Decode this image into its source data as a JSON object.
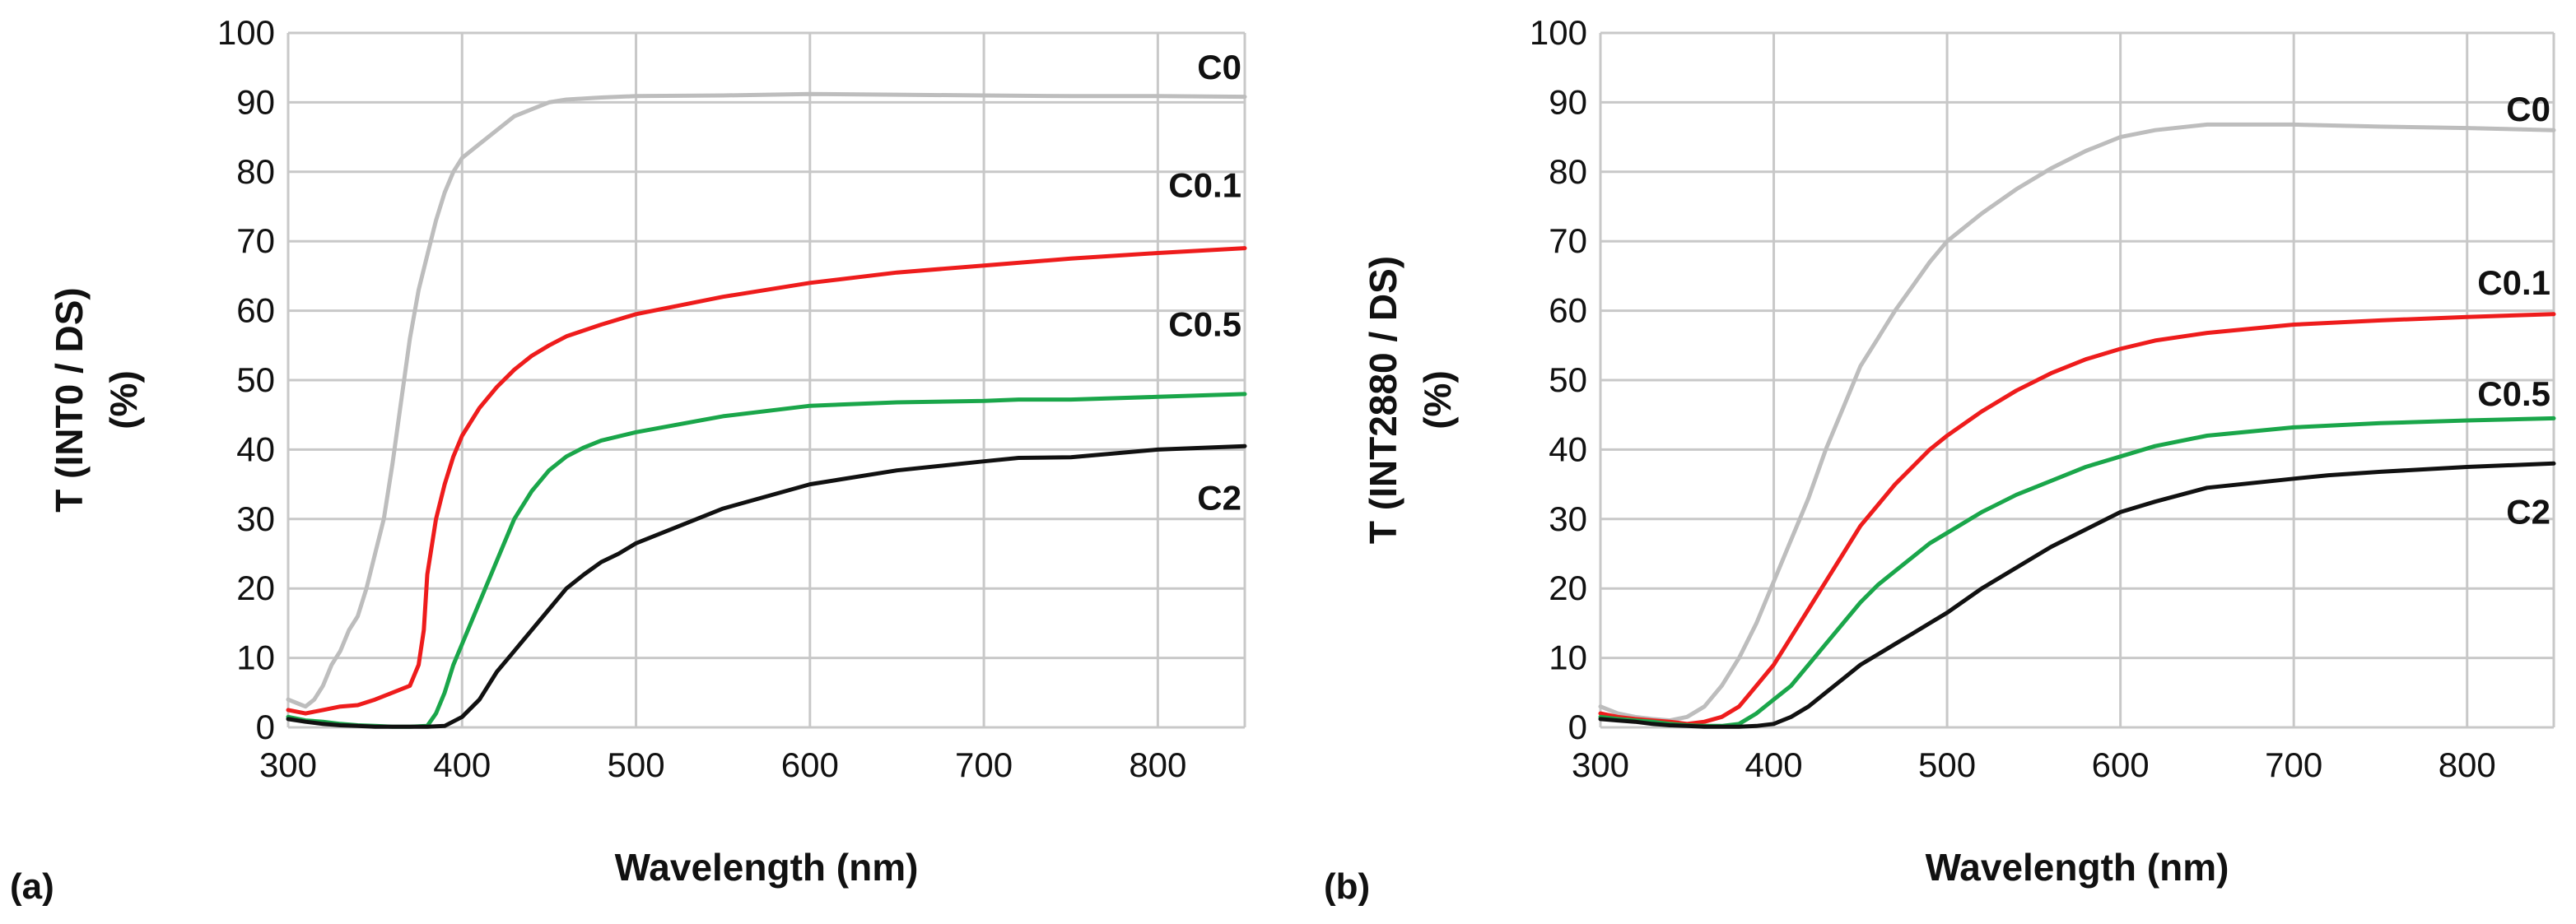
{
  "chart_data": [
    {
      "panel_label": "(a)",
      "type": "line",
      "title": "",
      "xlabel": "Wavelength (nm)",
      "ylabel_line1": "T (INT0 / DS)",
      "ylabel_line2": "(%)",
      "xlim": [
        300,
        850
      ],
      "ylim": [
        0,
        100
      ],
      "x_ticks": [
        300,
        400,
        500,
        600,
        700,
        800
      ],
      "y_ticks": [
        0,
        10,
        20,
        30,
        40,
        50,
        60,
        70,
        80,
        90,
        100
      ],
      "grid": true,
      "series": [
        {
          "name": "C0",
          "color": "#bdbdbd",
          "points": [
            [
              300,
              4
            ],
            [
              305,
              3.5
            ],
            [
              310,
              3
            ],
            [
              315,
              4
            ],
            [
              320,
              6
            ],
            [
              325,
              9
            ],
            [
              330,
              11
            ],
            [
              335,
              14
            ],
            [
              340,
              16
            ],
            [
              345,
              20
            ],
            [
              350,
              25
            ],
            [
              355,
              30
            ],
            [
              360,
              38
            ],
            [
              365,
              47
            ],
            [
              370,
              56
            ],
            [
              375,
              63
            ],
            [
              380,
              68
            ],
            [
              385,
              73
            ],
            [
              390,
              77
            ],
            [
              395,
              80
            ],
            [
              400,
              82
            ],
            [
              410,
              84
            ],
            [
              420,
              86
            ],
            [
              430,
              88
            ],
            [
              440,
              89
            ],
            [
              450,
              90
            ],
            [
              460,
              90.4
            ],
            [
              480,
              90.7
            ],
            [
              500,
              90.9
            ],
            [
              550,
              91
            ],
            [
              600,
              91.2
            ],
            [
              650,
              91.1
            ],
            [
              700,
              91
            ],
            [
              750,
              90.9
            ],
            [
              800,
              90.9
            ],
            [
              850,
              90.8
            ]
          ]
        },
        {
          "name": "C0.1",
          "color": "#ee1c1c",
          "points": [
            [
              300,
              2.5
            ],
            [
              310,
              2
            ],
            [
              320,
              2.5
            ],
            [
              330,
              3
            ],
            [
              340,
              3.2
            ],
            [
              350,
              4
            ],
            [
              360,
              5
            ],
            [
              370,
              6
            ],
            [
              375,
              9
            ],
            [
              378,
              14
            ],
            [
              380,
              22
            ],
            [
              385,
              30
            ],
            [
              390,
              35
            ],
            [
              395,
              39
            ],
            [
              400,
              42
            ],
            [
              410,
              46
            ],
            [
              420,
              49
            ],
            [
              430,
              51.5
            ],
            [
              440,
              53.5
            ],
            [
              450,
              55
            ],
            [
              460,
              56.3
            ],
            [
              480,
              58
            ],
            [
              500,
              59.5
            ],
            [
              550,
              62
            ],
            [
              600,
              64
            ],
            [
              650,
              65.5
            ],
            [
              700,
              66.5
            ],
            [
              750,
              67.5
            ],
            [
              800,
              68.3
            ],
            [
              850,
              69
            ]
          ]
        },
        {
          "name": "C0.5",
          "color": "#1aa64a",
          "points": [
            [
              300,
              1.5
            ],
            [
              310,
              1
            ],
            [
              320,
              0.8
            ],
            [
              330,
              0.5
            ],
            [
              340,
              0.3
            ],
            [
              350,
              0.2
            ],
            [
              360,
              0.1
            ],
            [
              370,
              0.1
            ],
            [
              380,
              0.2
            ],
            [
              385,
              2
            ],
            [
              390,
              5
            ],
            [
              395,
              9
            ],
            [
              400,
              12
            ],
            [
              410,
              18
            ],
            [
              420,
              24
            ],
            [
              430,
              30
            ],
            [
              440,
              34
            ],
            [
              450,
              37
            ],
            [
              460,
              39
            ],
            [
              470,
              40.3
            ],
            [
              480,
              41.3
            ],
            [
              500,
              42.5
            ],
            [
              550,
              44.8
            ],
            [
              600,
              46.3
            ],
            [
              650,
              46.8
            ],
            [
              700,
              47
            ],
            [
              720,
              47.2
            ],
            [
              750,
              47.2
            ],
            [
              800,
              47.6
            ],
            [
              850,
              48
            ]
          ]
        },
        {
          "name": "C2",
          "color": "#111111",
          "points": [
            [
              300,
              1.2
            ],
            [
              310,
              0.8
            ],
            [
              320,
              0.5
            ],
            [
              330,
              0.3
            ],
            [
              340,
              0.2
            ],
            [
              350,
              0.1
            ],
            [
              360,
              0.1
            ],
            [
              370,
              0.1
            ],
            [
              380,
              0.1
            ],
            [
              390,
              0.2
            ],
            [
              400,
              1.5
            ],
            [
              410,
              4
            ],
            [
              420,
              8
            ],
            [
              430,
              11
            ],
            [
              440,
              14
            ],
            [
              450,
              17
            ],
            [
              460,
              20
            ],
            [
              470,
              22
            ],
            [
              480,
              23.8
            ],
            [
              490,
              25
            ],
            [
              500,
              26.5
            ],
            [
              550,
              31.5
            ],
            [
              600,
              35
            ],
            [
              650,
              37
            ],
            [
              700,
              38.3
            ],
            [
              720,
              38.8
            ],
            [
              750,
              38.9
            ],
            [
              800,
              40
            ],
            [
              850,
              40.5
            ]
          ]
        }
      ]
    },
    {
      "panel_label": "(b)",
      "type": "line",
      "title": "",
      "xlabel": "Wavelength (nm)",
      "ylabel_line1": "T (INT2880 / DS)",
      "ylabel_line2": "(%)",
      "xlim": [
        300,
        850
      ],
      "ylim": [
        0,
        100
      ],
      "x_ticks": [
        300,
        400,
        500,
        600,
        700,
        800
      ],
      "y_ticks": [
        0,
        10,
        20,
        30,
        40,
        50,
        60,
        70,
        80,
        90,
        100
      ],
      "grid": true,
      "series": [
        {
          "name": "C0",
          "color": "#bdbdbd",
          "points": [
            [
              300,
              3
            ],
            [
              310,
              2
            ],
            [
              320,
              1.5
            ],
            [
              330,
              1.2
            ],
            [
              340,
              1
            ],
            [
              350,
              1.5
            ],
            [
              360,
              3
            ],
            [
              370,
              6
            ],
            [
              380,
              10
            ],
            [
              390,
              15
            ],
            [
              400,
              21
            ],
            [
              410,
              27
            ],
            [
              420,
              33
            ],
            [
              430,
              40
            ],
            [
              440,
              46
            ],
            [
              450,
              52
            ],
            [
              460,
              56
            ],
            [
              470,
              60
            ],
            [
              480,
              63.5
            ],
            [
              490,
              67
            ],
            [
              500,
              70
            ],
            [
              520,
              74
            ],
            [
              540,
              77.5
            ],
            [
              560,
              80.5
            ],
            [
              580,
              83
            ],
            [
              600,
              85
            ],
            [
              620,
              86
            ],
            [
              650,
              86.8
            ],
            [
              700,
              86.8
            ],
            [
              750,
              86.5
            ],
            [
              800,
              86.3
            ],
            [
              850,
              86
            ]
          ]
        },
        {
          "name": "C0.1",
          "color": "#ee1c1c",
          "points": [
            [
              300,
              2
            ],
            [
              310,
              1.5
            ],
            [
              320,
              1.2
            ],
            [
              330,
              1
            ],
            [
              340,
              0.8
            ],
            [
              350,
              0.5
            ],
            [
              360,
              0.8
            ],
            [
              370,
              1.5
            ],
            [
              380,
              3
            ],
            [
              390,
              6
            ],
            [
              400,
              9
            ],
            [
              410,
              13
            ],
            [
              420,
              17
            ],
            [
              430,
              21
            ],
            [
              440,
              25
            ],
            [
              450,
              29
            ],
            [
              460,
              32
            ],
            [
              470,
              35
            ],
            [
              480,
              37.5
            ],
            [
              490,
              40
            ],
            [
              500,
              42
            ],
            [
              520,
              45.5
            ],
            [
              540,
              48.5
            ],
            [
              560,
              51
            ],
            [
              580,
              53
            ],
            [
              600,
              54.5
            ],
            [
              620,
              55.7
            ],
            [
              650,
              56.8
            ],
            [
              700,
              58
            ],
            [
              750,
              58.6
            ],
            [
              800,
              59.1
            ],
            [
              850,
              59.5
            ]
          ]
        },
        {
          "name": "C0.5",
          "color": "#1aa64a",
          "points": [
            [
              300,
              1.5
            ],
            [
              310,
              1.2
            ],
            [
              320,
              1
            ],
            [
              330,
              0.8
            ],
            [
              340,
              0.5
            ],
            [
              350,
              0.3
            ],
            [
              360,
              0.2
            ],
            [
              370,
              0.2
            ],
            [
              380,
              0.5
            ],
            [
              390,
              2
            ],
            [
              400,
              4
            ],
            [
              410,
              6
            ],
            [
              420,
              9
            ],
            [
              430,
              12
            ],
            [
              440,
              15
            ],
            [
              450,
              18
            ],
            [
              460,
              20.5
            ],
            [
              470,
              22.5
            ],
            [
              480,
              24.5
            ],
            [
              490,
              26.5
            ],
            [
              500,
              28
            ],
            [
              520,
              31
            ],
            [
              540,
              33.5
            ],
            [
              560,
              35.5
            ],
            [
              580,
              37.5
            ],
            [
              600,
              39
            ],
            [
              620,
              40.5
            ],
            [
              650,
              42
            ],
            [
              700,
              43.2
            ],
            [
              750,
              43.8
            ],
            [
              800,
              44.2
            ],
            [
              850,
              44.5
            ]
          ]
        },
        {
          "name": "C2",
          "color": "#111111",
          "points": [
            [
              300,
              1.2
            ],
            [
              310,
              1
            ],
            [
              320,
              0.8
            ],
            [
              330,
              0.5
            ],
            [
              340,
              0.3
            ],
            [
              350,
              0.2
            ],
            [
              360,
              0.1
            ],
            [
              380,
              0.1
            ],
            [
              390,
              0.2
            ],
            [
              400,
              0.5
            ],
            [
              410,
              1.5
            ],
            [
              420,
              3
            ],
            [
              430,
              5
            ],
            [
              440,
              7
            ],
            [
              450,
              9
            ],
            [
              460,
              10.5
            ],
            [
              470,
              12
            ],
            [
              480,
              13.5
            ],
            [
              490,
              15
            ],
            [
              500,
              16.5
            ],
            [
              520,
              20
            ],
            [
              540,
              23
            ],
            [
              560,
              26
            ],
            [
              580,
              28.5
            ],
            [
              600,
              31
            ],
            [
              620,
              32.5
            ],
            [
              650,
              34.5
            ],
            [
              700,
              35.8
            ],
            [
              720,
              36.3
            ],
            [
              750,
              36.8
            ],
            [
              800,
              37.5
            ],
            [
              850,
              38
            ]
          ]
        }
      ]
    }
  ]
}
